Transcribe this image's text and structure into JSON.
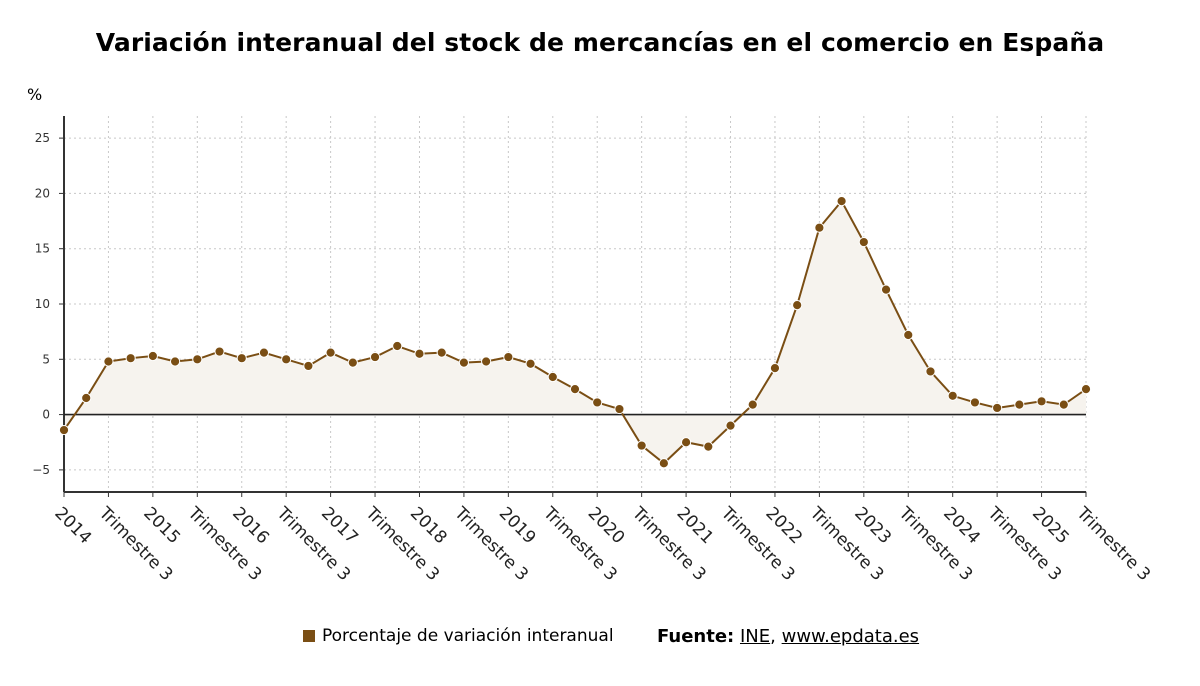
{
  "chart_data": {
    "type": "area",
    "title": "Variación interanual del stock de mercancías en el comercio en España",
    "y_unit": "%",
    "ylim": [
      -7,
      27
    ],
    "yticks": [
      -5,
      0,
      5,
      10,
      15,
      20,
      25
    ],
    "ytick_labels": [
      "−5",
      "0",
      "5",
      "10",
      "15",
      "20",
      "25"
    ],
    "grid": true,
    "legend_position": "bottom",
    "x_tick_labels": [
      "2014",
      "Trimestre 3",
      "2015",
      "Trimestre 3",
      "2016",
      "Trimestre 3",
      "2017",
      "Trimestre 3",
      "2018",
      "Trimestre 3",
      "2019",
      "Trimestre 3",
      "2020",
      "Trimestre 3",
      "2021",
      "Trimestre 3",
      "2022",
      "Trimestre 3",
      "2023",
      "Trimestre 3",
      "2024",
      "Trimestre 3",
      "2025",
      "Trimestre 3"
    ],
    "series": [
      {
        "name": "Porcentaje de variación interanual",
        "color": "#7a4e14",
        "fill": "#f6f3ee",
        "values": [
          -1.4,
          1.5,
          4.8,
          5.1,
          5.3,
          4.8,
          5.0,
          5.7,
          5.1,
          5.6,
          5.0,
          4.4,
          5.6,
          4.7,
          5.2,
          6.2,
          5.5,
          5.6,
          4.7,
          4.8,
          5.2,
          4.6,
          3.4,
          2.3,
          1.1,
          0.5,
          -2.8,
          -4.4,
          -2.5,
          -2.9,
          -1.0,
          0.9,
          4.2,
          9.9,
          16.9,
          19.3,
          15.6,
          11.3,
          7.2,
          3.9,
          1.7,
          1.1,
          0.6,
          0.9,
          1.2,
          0.9,
          2.3
        ]
      }
    ]
  },
  "legend": {
    "label": "Porcentaje de variación interanual"
  },
  "source": {
    "label": "Fuente:",
    "ine": "INE",
    "sep": ",",
    "site": "www.epdata.es"
  }
}
